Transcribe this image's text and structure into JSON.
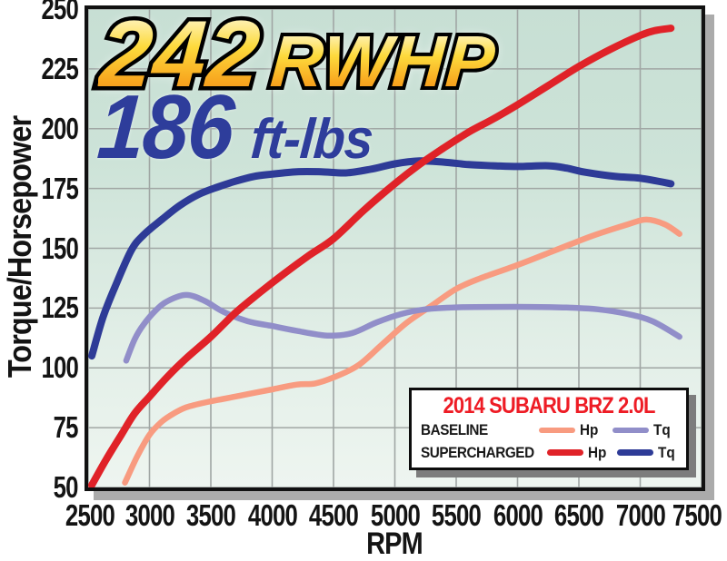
{
  "title_overlay": {
    "hp_value": "242",
    "hp_unit": "RWHP",
    "tq_value": "186",
    "tq_unit": "ft-lbs"
  },
  "axes": {
    "x_label": "RPM",
    "y_label": "Torque/Horsepower"
  },
  "legend": {
    "title": "2014 SUBARU BRZ 2.0L",
    "title_color": "#ee1c25",
    "rows": [
      {
        "label": "BASELINE",
        "entries": [
          {
            "label": "Hp",
            "color": "#f89b80"
          },
          {
            "label": "Tq",
            "color": "#918ec9"
          }
        ]
      },
      {
        "label": "SUPERCHARGED",
        "entries": [
          {
            "label": "Hp",
            "color": "#e02228"
          },
          {
            "label": "Tq",
            "color": "#2e3b97"
          }
        ]
      }
    ]
  },
  "colors": {
    "plot_bg_top": "#c7dfd4",
    "plot_bg_bottom": "#eef5f0",
    "gridline": "#a0a6a4",
    "plot_border": "#111111",
    "plot_shadow": "#ababab",
    "legend_shadow": "#7d7d7d",
    "headline_gradient": [
      "#fef7cf",
      "#fdda3c",
      "#f8a71f",
      "#f08c1c"
    ],
    "tq_text": "#2e3d9b"
  },
  "chart_data": {
    "type": "line",
    "title": "242 RWHP / 186 ft-lbs",
    "xlabel": "RPM",
    "ylabel": "Torque/Horsepower",
    "xlim": [
      2500,
      7500
    ],
    "ylim": [
      50,
      250
    ],
    "x_ticks": [
      2500,
      3000,
      3500,
      4000,
      4500,
      5000,
      5500,
      6000,
      6500,
      7000,
      7500
    ],
    "y_ticks": [
      50,
      75,
      100,
      125,
      150,
      175,
      200,
      225,
      250
    ],
    "grid": true,
    "legend_position": "bottom-right",
    "annotations": [
      "242 RWHP",
      "186 ft-lbs"
    ],
    "series": [
      {
        "name": "baseline-hp",
        "legend": "BASELINE Hp",
        "color": "#f89b80",
        "stroke_width": 6.5,
        "points": [
          [
            2800,
            52
          ],
          [
            2900,
            63
          ],
          [
            3000,
            72
          ],
          [
            3100,
            77.5
          ],
          [
            3200,
            81
          ],
          [
            3300,
            83.5
          ],
          [
            3450,
            85.5
          ],
          [
            3600,
            87
          ],
          [
            3800,
            89
          ],
          [
            4000,
            91
          ],
          [
            4200,
            93
          ],
          [
            4350,
            93.5
          ],
          [
            4500,
            96
          ],
          [
            4700,
            101
          ],
          [
            4900,
            110
          ],
          [
            5100,
            119
          ],
          [
            5300,
            126
          ],
          [
            5500,
            133
          ],
          [
            5700,
            137.5
          ],
          [
            6000,
            143
          ],
          [
            6300,
            149
          ],
          [
            6600,
            155
          ],
          [
            6900,
            160
          ],
          [
            7050,
            162
          ],
          [
            7200,
            160
          ],
          [
            7320,
            156
          ]
        ]
      },
      {
        "name": "baseline-tq",
        "legend": "BASELINE Tq",
        "color": "#918ec9",
        "stroke_width": 6.5,
        "points": [
          [
            2810,
            103
          ],
          [
            2880,
            112
          ],
          [
            2950,
            118
          ],
          [
            3050,
            124
          ],
          [
            3150,
            128
          ],
          [
            3300,
            130.5
          ],
          [
            3450,
            128
          ],
          [
            3600,
            123.5
          ],
          [
            3800,
            119.5
          ],
          [
            4000,
            117.5
          ],
          [
            4200,
            115.5
          ],
          [
            4450,
            113.5
          ],
          [
            4650,
            114.5
          ],
          [
            4850,
            119
          ],
          [
            5050,
            122.5
          ],
          [
            5250,
            124.5
          ],
          [
            5500,
            125.3
          ],
          [
            5800,
            125.5
          ],
          [
            6100,
            125.5
          ],
          [
            6400,
            125.2
          ],
          [
            6650,
            124.5
          ],
          [
            6900,
            122.5
          ],
          [
            7100,
            119.5
          ],
          [
            7320,
            113
          ]
        ]
      },
      {
        "name": "supercharged-tq",
        "legend": "SUPERCHARGED Tq",
        "color": "#2e3b97",
        "stroke_width": 8,
        "points": [
          [
            2530,
            105
          ],
          [
            2620,
            121
          ],
          [
            2720,
            134
          ],
          [
            2850,
            149
          ],
          [
            2950,
            155.5
          ],
          [
            3100,
            162
          ],
          [
            3250,
            168
          ],
          [
            3400,
            172.5
          ],
          [
            3550,
            175.5
          ],
          [
            3700,
            178
          ],
          [
            3850,
            180
          ],
          [
            4000,
            181
          ],
          [
            4200,
            182
          ],
          [
            4400,
            182
          ],
          [
            4600,
            181.5
          ],
          [
            4800,
            183
          ],
          [
            5000,
            185.3
          ],
          [
            5200,
            186.5
          ],
          [
            5400,
            186
          ],
          [
            5600,
            185
          ],
          [
            5800,
            184.5
          ],
          [
            6000,
            184.2
          ],
          [
            6250,
            184.5
          ],
          [
            6400,
            183.5
          ],
          [
            6550,
            181.8
          ],
          [
            6800,
            180
          ],
          [
            7000,
            179.3
          ],
          [
            7250,
            177
          ]
        ]
      },
      {
        "name": "supercharged-hp",
        "legend": "SUPERCHARGED Hp",
        "color": "#e02228",
        "stroke_width": 8,
        "points": [
          [
            2530,
            51
          ],
          [
            2650,
            62
          ],
          [
            2770,
            72
          ],
          [
            2880,
            81
          ],
          [
            3000,
            88
          ],
          [
            3150,
            96.5
          ],
          [
            3300,
            104
          ],
          [
            3500,
            113
          ],
          [
            3700,
            123
          ],
          [
            3900,
            131.5
          ],
          [
            4100,
            139.5
          ],
          [
            4300,
            147
          ],
          [
            4500,
            154
          ],
          [
            4750,
            166
          ],
          [
            5000,
            177
          ],
          [
            5200,
            185
          ],
          [
            5400,
            192
          ],
          [
            5600,
            198.5
          ],
          [
            5800,
            204
          ],
          [
            6000,
            210
          ],
          [
            6250,
            218
          ],
          [
            6500,
            226
          ],
          [
            6750,
            233
          ],
          [
            7000,
            239
          ],
          [
            7120,
            241
          ],
          [
            7250,
            242
          ]
        ]
      }
    ]
  }
}
